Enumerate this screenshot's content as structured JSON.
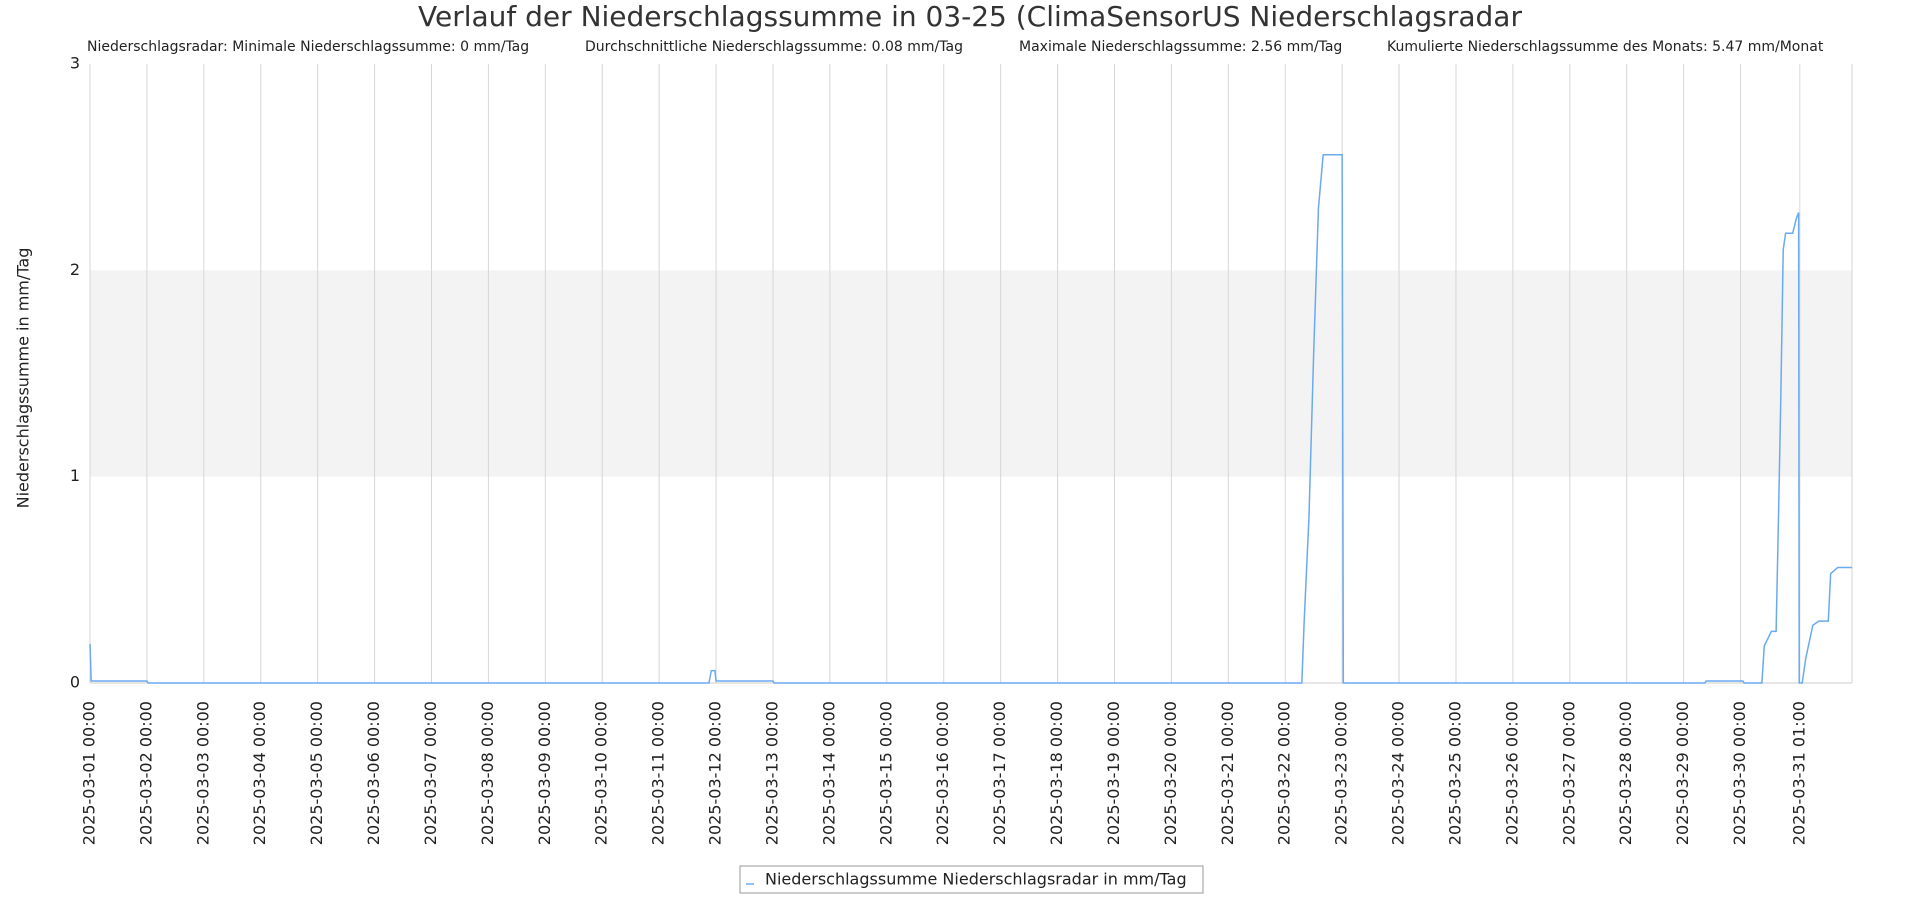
{
  "chart_data": {
    "type": "line",
    "title": "Verlauf der Niederschlagssumme in 03-25 (ClimaSensorUS Niederschlagsradar",
    "subtitles": [
      "Niederschlagsradar: Minimale Niederschlagssumme: 0 mm/Tag",
      "Durchschnittliche Niederschlagssumme: 0.08 mm/Tag",
      "Maximale Niederschlagssumme: 2.56 mm/Tag",
      "Kumulierte Niederschlagssumme des Monats: 5.47 mm/Monat"
    ],
    "y_label": "Niederschlagssumme in mm/Tag",
    "x": [
      "2025-03-01 00:00",
      "2025-03-01 00:30",
      "2025-03-02 00:00",
      "2025-03-02 00:30",
      "2025-03-11 21:00",
      "2025-03-11 22:00",
      "2025-03-11 23:30",
      "2025-03-12 00:00",
      "2025-03-13 00:00",
      "2025-03-13 00:30",
      "2025-03-22 07:00",
      "2025-03-22 08:00",
      "2025-03-22 10:00",
      "2025-03-22 12:00",
      "2025-03-22 14:00",
      "2025-03-22 16:00",
      "2025-03-23 00:00",
      "2025-03-23 00:30",
      "2025-03-29 09:00",
      "2025-03-29 09:30",
      "2025-03-30 01:00",
      "2025-03-30 01:30",
      "2025-03-30 09:00",
      "2025-03-30 10:00",
      "2025-03-30 13:00",
      "2025-03-30 15:00",
      "2025-03-30 16:00",
      "2025-03-30 17:00",
      "2025-03-30 18:00",
      "2025-03-30 19:00",
      "2025-03-30 22:00",
      "2025-03-30 23:30",
      "2025-03-31 00:30",
      "2025-03-31 00:45",
      "2025-03-31 02:00",
      "2025-03-31 03:30",
      "2025-03-31 06:30",
      "2025-03-31 09:00",
      "2025-03-31 13:00",
      "2025-03-31 14:00",
      "2025-03-31 17:00",
      "2025-03-31 23:00"
    ],
    "series": [
      {
        "name": "Niederschlagssumme Niederschlagsradar in mm/Tag",
        "color": "#6aaaf0",
        "values": [
          0.19,
          0.01,
          0.01,
          0,
          0,
          0.06,
          0.06,
          0.01,
          0.01,
          0,
          0,
          0.3,
          0.8,
          1.6,
          2.3,
          2.56,
          2.56,
          0,
          0,
          0.01,
          0.01,
          0,
          0,
          0.18,
          0.25,
          0.25,
          0.8,
          1.4,
          2.1,
          2.18,
          2.18,
          2.25,
          2.28,
          0,
          0,
          0.12,
          0.28,
          0.3,
          0.3,
          0.53,
          0.56,
          0.56
        ]
      }
    ],
    "xticks": [
      "2025-03-01 00:00",
      "2025-03-02 00:00",
      "2025-03-03 00:00",
      "2025-03-04 00:00",
      "2025-03-05 00:00",
      "2025-03-06 00:00",
      "2025-03-07 00:00",
      "2025-03-08 00:00",
      "2025-03-09 00:00",
      "2025-03-10 00:00",
      "2025-03-11 00:00",
      "2025-03-12 00:00",
      "2025-03-13 00:00",
      "2025-03-14 00:00",
      "2025-03-15 00:00",
      "2025-03-16 00:00",
      "2025-03-17 00:00",
      "2025-03-18 00:00",
      "2025-03-19 00:00",
      "2025-03-20 00:00",
      "2025-03-21 00:00",
      "2025-03-22 00:00",
      "2025-03-23 00:00",
      "2025-03-24 00:00",
      "2025-03-25 00:00",
      "2025-03-26 00:00",
      "2025-03-27 00:00",
      "2025-03-28 00:00",
      "2025-03-29 00:00",
      "2025-03-30 00:00",
      "2025-03-31 01:00"
    ],
    "ylim": [
      0,
      3
    ],
    "yticks": [
      0,
      1,
      2,
      3
    ],
    "band": {
      "from": 1,
      "to": 2,
      "color": "#f3f3f3"
    },
    "grid": true,
    "legend": "bottom"
  }
}
